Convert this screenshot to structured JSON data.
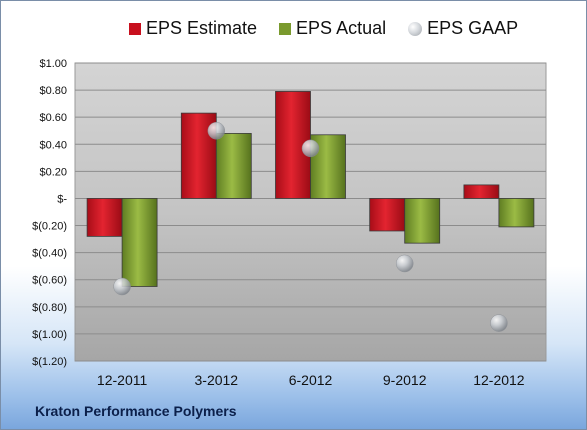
{
  "company_name": "Kraton Performance Polymers",
  "chart_data": {
    "type": "bar",
    "categories": [
      "12-2011",
      "3-2012",
      "6-2012",
      "9-2012",
      "12-2012"
    ],
    "series": [
      {
        "name": "EPS Estimate",
        "kind": "bar",
        "color": "#c8101e",
        "values": [
          -0.28,
          0.63,
          0.79,
          -0.24,
          0.1
        ]
      },
      {
        "name": "EPS Actual",
        "kind": "bar",
        "color": "#7a9a2e",
        "values": [
          -0.65,
          0.48,
          0.47,
          -0.33,
          -0.21
        ]
      },
      {
        "name": "EPS GAAP",
        "kind": "scatter",
        "color": "#b8bcc2",
        "values": [
          -0.65,
          0.5,
          0.37,
          -0.48,
          -0.92
        ]
      }
    ],
    "ylim": [
      -1.2,
      1.0
    ],
    "yticks": [
      1.0,
      0.8,
      0.6,
      0.4,
      0.2,
      0,
      -0.2,
      -0.4,
      -0.6,
      -0.8,
      -1.0,
      -1.2
    ],
    "ytick_labels": [
      "$1.00",
      "$0.80",
      "$0.60",
      "$0.40",
      "$0.20",
      "$-",
      "$(0.20)",
      "$(0.40)",
      "$(0.60)",
      "$(0.80)",
      "$(1.00)",
      "$(1.20)"
    ],
    "grid": true,
    "legend_position": "top"
  }
}
